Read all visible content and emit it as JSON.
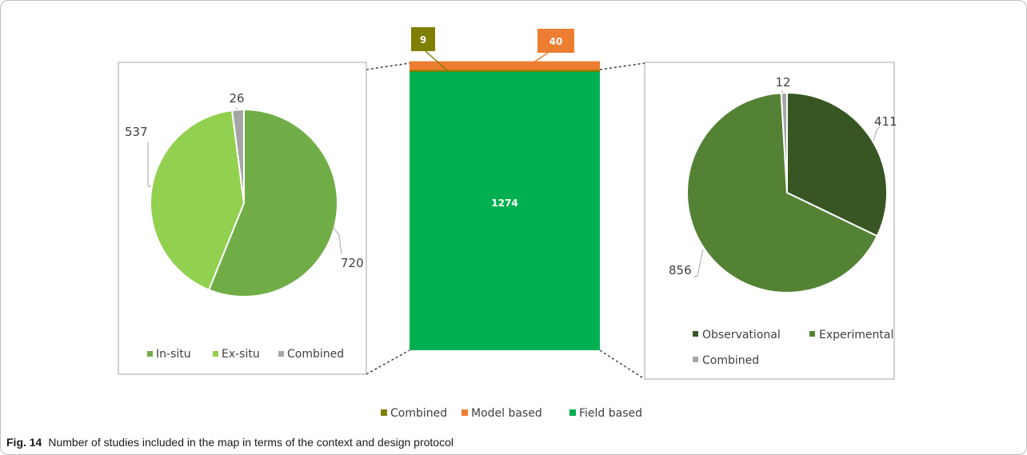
{
  "caption": {
    "label": "Fig. 14",
    "text": "Number of studies included in the map in terms of the context and design protocol"
  },
  "chart_data": [
    {
      "type": "pie",
      "slices": [
        {
          "label": "In-situ",
          "value": 720,
          "color": "#70ad47"
        },
        {
          "label": "Ex-situ",
          "value": 537,
          "color": "#92d050"
        },
        {
          "label": "Combined",
          "value": 26,
          "color": "#a5a5a5"
        }
      ],
      "legend_position": "bottom"
    },
    {
      "type": "bar",
      "stacked": true,
      "series": [
        {
          "name": "Combined",
          "value": 9,
          "color": "#7f7f00"
        },
        {
          "name": "Model based",
          "value": 40,
          "color": "#ed7d31"
        },
        {
          "name": "Field based",
          "value": 1274,
          "color": "#00b050"
        }
      ],
      "legend_position": "bottom"
    },
    {
      "type": "pie",
      "slices": [
        {
          "label": "Observational",
          "value": 411,
          "color": "#375623"
        },
        {
          "label": "Experimental",
          "value": 856,
          "color": "#548235"
        },
        {
          "label": "Combined",
          "value": 12,
          "color": "#a5a5a5"
        }
      ],
      "legend_position": "bottom"
    }
  ]
}
